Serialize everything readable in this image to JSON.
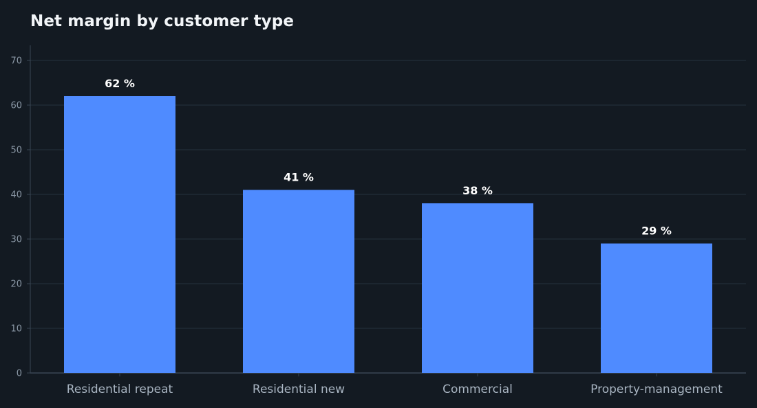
{
  "chart_data": {
    "type": "bar",
    "title": "Net margin by customer type",
    "xlabel": "",
    "ylabel": "",
    "categories": [
      "Residential repeat",
      "Residential new",
      "Commercial",
      "Property-management"
    ],
    "values": [
      62,
      41,
      38,
      29
    ],
    "value_labels": [
      "62 %",
      "41 %",
      "38 %",
      "29 %"
    ],
    "ylim": [
      0,
      70
    ],
    "yticks": [
      0,
      10,
      20,
      30,
      40,
      50,
      60,
      70
    ],
    "grid": true,
    "legend": "none",
    "colors": {
      "bar": "#4f8bff",
      "background": "#131a22",
      "grid": "#1f2a35",
      "axis": "#3a4654"
    }
  }
}
